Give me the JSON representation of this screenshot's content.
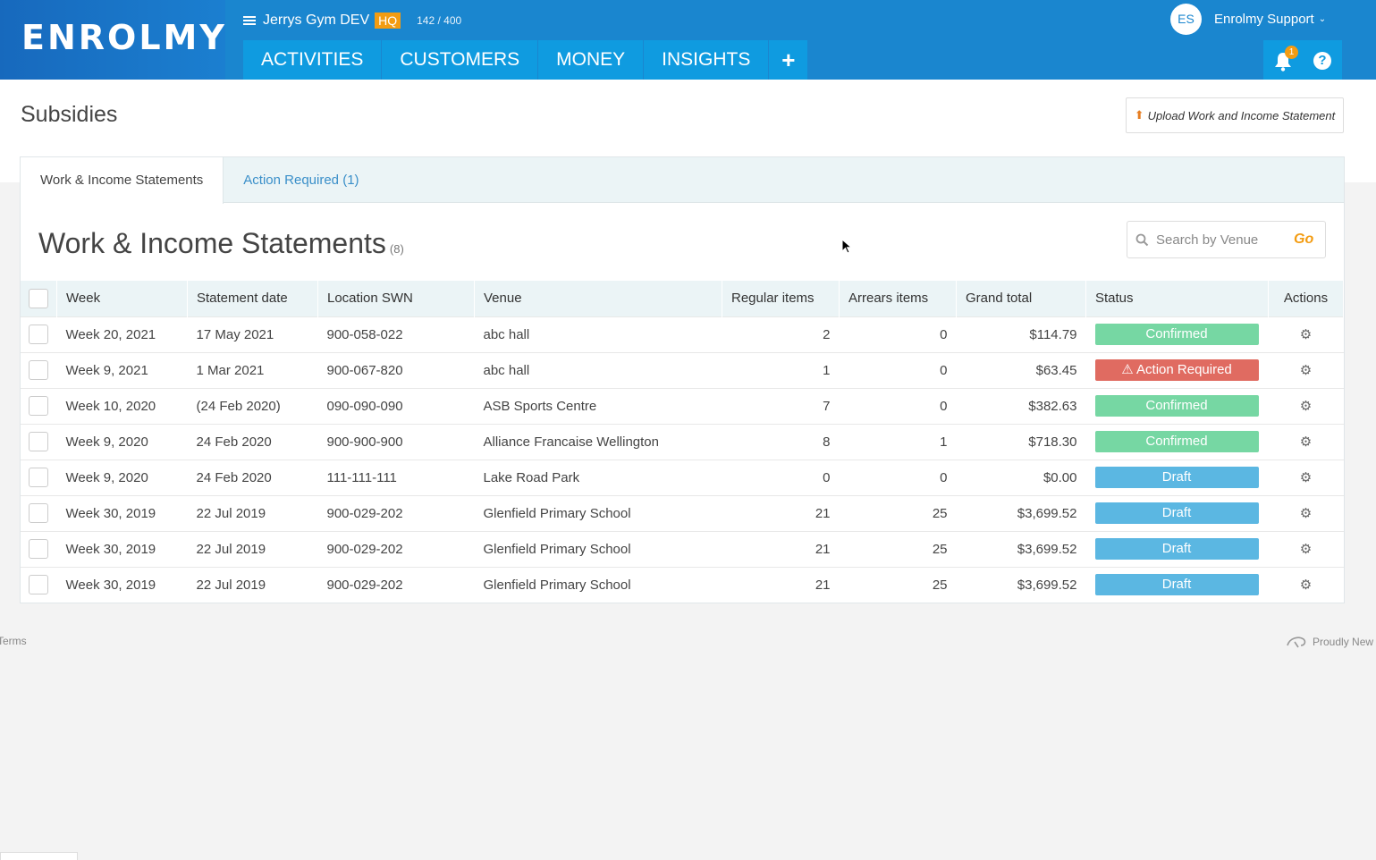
{
  "brand": {
    "logo": "ENROLMY"
  },
  "org": {
    "name": "Jerrys Gym DEV",
    "hq_badge": "HQ",
    "quota": "142 / 400"
  },
  "nav": {
    "tabs": [
      "ACTIVITIES",
      "CUSTOMERS",
      "MONEY",
      "INSIGHTS"
    ],
    "plus": "+"
  },
  "user": {
    "initials": "ES",
    "name": "Enrolmy Support",
    "notifications": "1",
    "help": "?"
  },
  "page": {
    "title": "Subsidies",
    "upload_button": "Upload Work and Income Statement"
  },
  "tabs": [
    "Work & Income Statements",
    "Action Required (1)"
  ],
  "section": {
    "title": "Work & Income Statements",
    "count": "(8)"
  },
  "search": {
    "placeholder": "Search by Venue",
    "go": "Go"
  },
  "table": {
    "headers": [
      "Week",
      "Statement date",
      "Location SWN",
      "Venue",
      "Regular items",
      "Arrears items",
      "Grand total",
      "Status",
      "Actions"
    ],
    "rows": [
      [
        "Week 20, 2021",
        "17 May 2021",
        "900-058-022",
        "abc hall",
        "2",
        "0",
        "$114.79",
        "Confirmed"
      ],
      [
        "Week 9, 2021",
        "1 Mar 2021",
        "900-067-820",
        "abc hall",
        "1",
        "0",
        "$63.45",
        "Action Required"
      ],
      [
        "Week 10, 2020",
        "(24 Feb 2020)",
        "090-090-090",
        "ASB Sports Centre",
        "7",
        "0",
        "$382.63",
        "Confirmed"
      ],
      [
        "Week 9, 2020",
        "24 Feb 2020",
        "900-900-900",
        "Alliance Francaise Wellington",
        "8",
        "1",
        "$718.30",
        "Confirmed"
      ],
      [
        "Week 9, 2020",
        "24 Feb 2020",
        "111-111-111",
        "Lake Road Park",
        "0",
        "0",
        "$0.00",
        "Draft"
      ],
      [
        "Week 30, 2019",
        "22 Jul 2019",
        "900-029-202",
        "Glenfield Primary School",
        "21",
        "25",
        "$3,699.52",
        "Draft"
      ],
      [
        "Week 30, 2019",
        "22 Jul 2019",
        "900-029-202",
        "Glenfield Primary School",
        "21",
        "25",
        "$3,699.52",
        "Draft"
      ],
      [
        "Week 30, 2019",
        "22 Jul 2019",
        "900-029-202",
        "Glenfield Primary School",
        "21",
        "25",
        "$3,699.52",
        "Draft"
      ]
    ]
  },
  "status_colors": {
    "Confirmed": "#76d7a3",
    "Action Required": "#e06b61",
    "Draft": "#5bb7e2"
  },
  "footer": {
    "terms": "Terms",
    "proudly": "Proudly New"
  }
}
